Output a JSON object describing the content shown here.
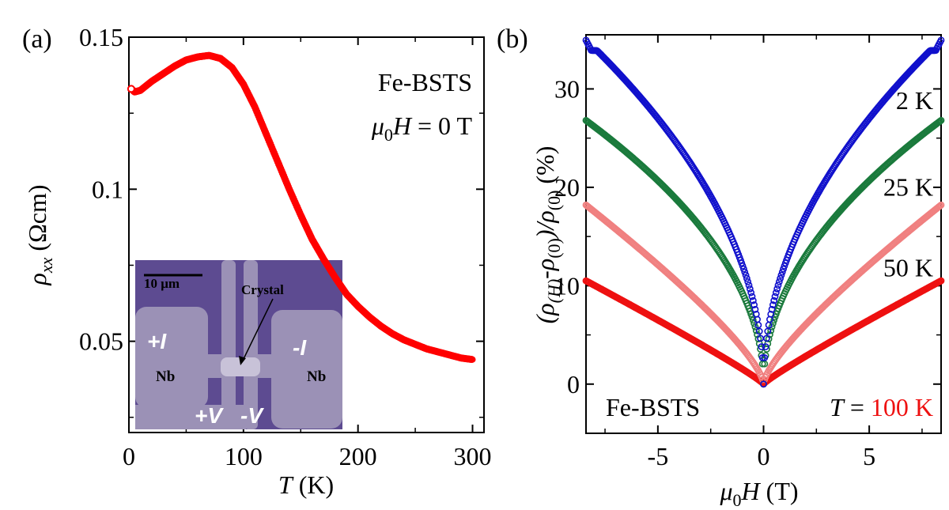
{
  "chart_data": [
    {
      "type": "line",
      "panel_label": "(a)",
      "xlabel": "T (K)",
      "ylabel": "ρxx (Ωcm)",
      "xlim": [
        0,
        310
      ],
      "ylim": [
        0.02,
        0.15
      ],
      "xticks": [
        "0",
        "100",
        "200",
        "300"
      ],
      "yticks": [
        "0.05",
        "0.1",
        "0.15"
      ],
      "annotation_lines": [
        "Fe-BSTS",
        "μ0H = 0 T"
      ],
      "series": [
        {
          "color": "#ff0000",
          "x": [
            2,
            5,
            10,
            20,
            30,
            40,
            50,
            60,
            70,
            80,
            90,
            100,
            110,
            120,
            130,
            140,
            150,
            160,
            170,
            180,
            190,
            200,
            210,
            220,
            230,
            240,
            250,
            260,
            270,
            280,
            290,
            300
          ],
          "y": [
            0.133,
            0.132,
            0.1325,
            0.1355,
            0.138,
            0.1405,
            0.1425,
            0.1435,
            0.144,
            0.143,
            0.14,
            0.1345,
            0.127,
            0.118,
            0.109,
            0.1,
            0.0915,
            0.0835,
            0.077,
            0.071,
            0.0655,
            0.0615,
            0.058,
            0.055,
            0.0525,
            0.0505,
            0.049,
            0.0475,
            0.0465,
            0.0455,
            0.0445,
            0.044
          ]
        }
      ],
      "inset": {
        "scale_bar_label": "10 μm",
        "crystal_label": "Crystal",
        "plus_i": "+I",
        "minus_i": "-I",
        "nb_left": "Nb",
        "nb_right": "Nb",
        "plus_v": "+V",
        "minus_v": "-V",
        "background_color": "#5d4b91",
        "pad_color": "#9b91b6"
      }
    },
    {
      "type": "scatter",
      "panel_label": "(b)",
      "xlabel": "μ0H (T)",
      "ylabel": "(ρ(H)-ρ(0))/ρ(0) (%)",
      "xlim": [
        -8.4,
        8.4
      ],
      "ylim": [
        -5,
        35.5
      ],
      "xticks": [
        "-5",
        "0",
        "5"
      ],
      "yticks": [
        "0",
        "10",
        "20",
        "30"
      ],
      "annotation_left": "Fe-BSTS",
      "annotation_right_prefix": "T = ",
      "series": [
        {
          "name": "2 K",
          "color": "#1010cc",
          "y_at_max": 35.0,
          "shape": "sqrt"
        },
        {
          "name": "25 K",
          "color": "#1a7a3c",
          "y_at_max": 26.8,
          "shape": "sqrt"
        },
        {
          "name": "50 K",
          "color": "#f08080",
          "y_at_max": 18.2,
          "shape": "mixed"
        },
        {
          "name": "100 K",
          "color": "#ee1111",
          "y_at_max": 10.5,
          "shape": "linear"
        }
      ]
    }
  ]
}
